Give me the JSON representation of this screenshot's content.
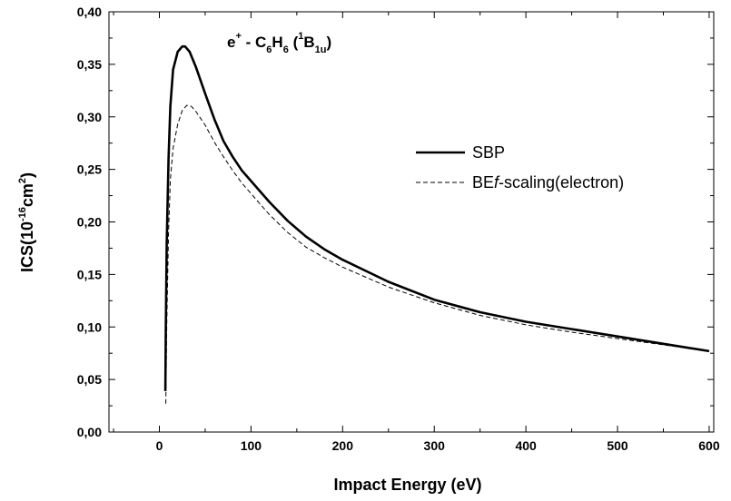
{
  "chart_data": {
    "type": "line",
    "title": "",
    "annotation": {
      "prefix": "e",
      "charge": "+",
      "dash": " - ",
      "molecule_c": "C",
      "sub_c": "6",
      "molecule_h": "H",
      "sub_h": "6",
      "state_open": "(",
      "state_super": "1",
      "state_letter": "B",
      "state_sub": "1u",
      "state_close": ")"
    },
    "xlabel": "Impact Energy (eV)",
    "ylabel_main": "ICS(10",
    "ylabel_exp": "-16",
    "ylabel_unit": "cm",
    "ylabel_unit_exp": "2",
    "ylabel_close": ")",
    "xlim": [
      -55,
      605
    ],
    "ylim": [
      0,
      0.4
    ],
    "xticks": [
      0,
      100,
      200,
      300,
      400,
      500,
      600
    ],
    "xtick_labels": [
      "0",
      "100",
      "200",
      "300",
      "400",
      "500",
      "600"
    ],
    "yticks": [
      0,
      0.05,
      0.1,
      0.15,
      0.2,
      0.25,
      0.3,
      0.35,
      0.4
    ],
    "ytick_labels": [
      "0,00",
      "0,05",
      "0,10",
      "0,15",
      "0,20",
      "0,25",
      "0,30",
      "0,35",
      "0,40"
    ],
    "legend_position": "center-right",
    "series": [
      {
        "name": "SBP",
        "style": "solid",
        "x": [
          6.5,
          7,
          8,
          10,
          12,
          15,
          20,
          25,
          28,
          33,
          40,
          50,
          60,
          70,
          80,
          90,
          100,
          120,
          140,
          160,
          180,
          200,
          250,
          300,
          350,
          400,
          450,
          500,
          550,
          600
        ],
        "y": [
          0.039,
          0.1,
          0.18,
          0.26,
          0.31,
          0.345,
          0.362,
          0.367,
          0.367,
          0.362,
          0.347,
          0.322,
          0.298,
          0.277,
          0.262,
          0.249,
          0.239,
          0.219,
          0.201,
          0.186,
          0.174,
          0.164,
          0.143,
          0.126,
          0.114,
          0.105,
          0.098,
          0.091,
          0.084,
          0.077
        ]
      },
      {
        "name": "BEf-scaling(electron)",
        "legend_parts": [
          "BE",
          "f",
          "-scaling(electron)"
        ],
        "style": "dashed",
        "x": [
          7,
          8,
          10,
          12,
          15,
          20,
          25,
          30,
          35,
          40,
          50,
          60,
          70,
          80,
          90,
          100,
          120,
          140,
          160,
          180,
          200,
          250,
          300,
          350,
          400,
          450,
          500,
          550,
          600
        ],
        "y": [
          0.027,
          0.1,
          0.19,
          0.24,
          0.27,
          0.293,
          0.306,
          0.311,
          0.31,
          0.305,
          0.292,
          0.276,
          0.262,
          0.249,
          0.237,
          0.227,
          0.207,
          0.19,
          0.176,
          0.166,
          0.157,
          0.138,
          0.123,
          0.111,
          0.102,
          0.095,
          0.089,
          0.083,
          0.077
        ]
      }
    ]
  }
}
